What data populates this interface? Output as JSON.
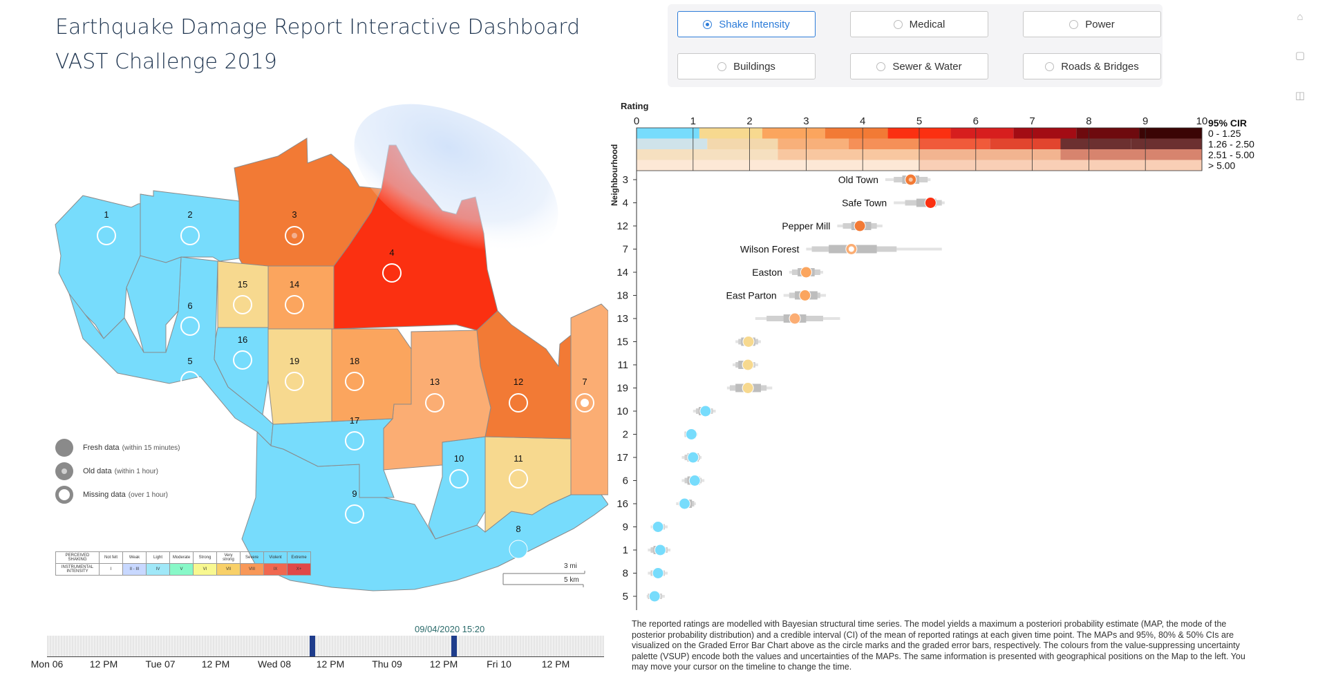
{
  "header": {
    "title_line1": "Earthquake Damage Report Interactive Dashboard",
    "title_line2": "VAST Challenge 2019"
  },
  "options": [
    {
      "label": "Shake Intensity",
      "selected": true
    },
    {
      "label": "Medical",
      "selected": false
    },
    {
      "label": "Power",
      "selected": false
    },
    {
      "label": "Buildings",
      "selected": false
    },
    {
      "label": "Sewer & Water",
      "selected": false
    },
    {
      "label": "Roads & Bridges",
      "selected": false
    }
  ],
  "sidebar_icons": [
    "home-icon",
    "chat-icon",
    "book-icon"
  ],
  "map": {
    "regions": [
      {
        "id": "1",
        "color": "#77dcfc",
        "marker": "missing"
      },
      {
        "id": "2",
        "color": "#77dcfc",
        "marker": "missing"
      },
      {
        "id": "3",
        "color": "#f27a35",
        "marker": "old"
      },
      {
        "id": "4",
        "color": "#fb3011",
        "marker": "missing"
      },
      {
        "id": "5",
        "color": "#77dcfc",
        "marker": "missing"
      },
      {
        "id": "6",
        "color": "#77dcfc",
        "marker": "missing"
      },
      {
        "id": "7",
        "color": "#fbad73",
        "marker": "old-white"
      },
      {
        "id": "8",
        "color": "#77dcfc",
        "marker": "fresh"
      },
      {
        "id": "9",
        "color": "#77dcfc",
        "marker": "missing"
      },
      {
        "id": "10",
        "color": "#77dcfc",
        "marker": "missing"
      },
      {
        "id": "11",
        "color": "#f7d98f",
        "marker": "missing"
      },
      {
        "id": "12",
        "color": "#f27a35",
        "marker": "missing"
      },
      {
        "id": "13",
        "color": "#fbad73",
        "marker": "missing"
      },
      {
        "id": "14",
        "color": "#fba55e",
        "marker": "missing"
      },
      {
        "id": "15",
        "color": "#f7d98f",
        "marker": "missing"
      },
      {
        "id": "16",
        "color": "#77dcfc",
        "marker": "missing"
      },
      {
        "id": "17",
        "color": "#77dcfc",
        "marker": "missing"
      },
      {
        "id": "18",
        "color": "#fba55e",
        "marker": "missing"
      },
      {
        "id": "19",
        "color": "#f7d98f",
        "marker": "missing"
      }
    ],
    "legend": [
      {
        "label": "Fresh data",
        "note": "(within 15 minutes)",
        "type": "fresh"
      },
      {
        "label": "Old data",
        "note": "(within 1 hour)",
        "type": "old"
      },
      {
        "label": "Missing data",
        "note": "(over 1 hour)",
        "type": "missing"
      }
    ],
    "mmi_table": {
      "row1_header": "PERCEIVED SHAKING",
      "row2_header": "INSTRUMENTAL INTENSITY",
      "shaking": [
        "Not felt",
        "Weak",
        "Light",
        "Moderate",
        "Strong",
        "Very strong",
        "Severe",
        "Violent",
        "Extreme"
      ],
      "intensity": [
        "I",
        "II - III",
        "IV",
        "V",
        "VI",
        "VII",
        "VIII",
        "IX",
        "X+"
      ],
      "colors": [
        "#ffffff",
        "#c8d8ff",
        "#a0e8f8",
        "#88f8c8",
        "#f8f890",
        "#f8d068",
        "#f89858",
        "#f06850",
        "#e04848"
      ]
    },
    "scale": {
      "mi": "3 mi",
      "km": "5 km"
    }
  },
  "timeline": {
    "current_time": "09/04/2020 15:20",
    "ticks": [
      "Mon 06",
      "12 PM",
      "Tue 07",
      "12 PM",
      "Wed 08",
      "12 PM",
      "Thu 09",
      "12 PM",
      "Fri 10",
      "12 PM"
    ]
  },
  "chart_data": {
    "type": "scatter",
    "xlabel": "Rating",
    "ylabel": "Neighbourhood",
    "xlim": [
      0,
      10
    ],
    "xticks": [
      0,
      1,
      2,
      3,
      4,
      5,
      6,
      7,
      8,
      9,
      10
    ],
    "legend_title": "95% CIR",
    "legend_entries": [
      "0 - 1.25",
      "1.26 - 2.50",
      "2.51 - 5.00",
      "> 5.00"
    ],
    "vsup_rows": [
      [
        "#77dcfc",
        "#f7d98f",
        "#fba55e",
        "#f27a35",
        "#fb3011",
        "#d71e1e",
        "#a30c14",
        "#6e0a0e",
        "#3b0505"
      ],
      [
        "#cfe3ea",
        "#f3d8ad",
        "#f8b07a",
        "#f59058",
        "#f05a3a",
        "#e2452e",
        "#6c3030",
        "#6c3030"
      ],
      [
        "#f6e0c0",
        "#f8c7a0",
        "#f2b490",
        "#d7846e"
      ],
      [
        "#fde8d6",
        "#f9cfb6"
      ]
    ],
    "points": [
      {
        "neighbourhood": "3",
        "name": "Old Town",
        "map": 4.85,
        "ci50": [
          4.7,
          5.0
        ],
        "ci80": [
          4.55,
          5.15
        ],
        "ci95": [
          4.4,
          5.2
        ],
        "color": "#f27a35",
        "marker": "old"
      },
      {
        "neighbourhood": "4",
        "name": "Safe Town",
        "map": 5.2,
        "ci50": [
          4.95,
          5.3
        ],
        "ci80": [
          4.75,
          5.4
        ],
        "ci95": [
          4.55,
          5.45
        ],
        "color": "#fb3011",
        "marker": "fresh"
      },
      {
        "neighbourhood": "12",
        "name": "Pepper Mill",
        "map": 3.95,
        "ci50": [
          3.8,
          4.15
        ],
        "ci80": [
          3.65,
          4.25
        ],
        "ci95": [
          3.55,
          4.35
        ],
        "color": "#f27a35",
        "marker": "fresh"
      },
      {
        "neighbourhood": "7",
        "name": "Wilson Forest",
        "map": 3.8,
        "ci50": [
          3.4,
          4.25
        ],
        "ci80": [
          3.1,
          4.6
        ],
        "ci95": [
          3.0,
          5.4
        ],
        "color": "#fbad73",
        "marker": "old-white"
      },
      {
        "neighbourhood": "14",
        "name": "Easton",
        "map": 3.0,
        "ci50": [
          2.85,
          3.15
        ],
        "ci80": [
          2.75,
          3.25
        ],
        "ci95": [
          2.7,
          3.3
        ],
        "color": "#fba55e",
        "marker": "fresh"
      },
      {
        "neighbourhood": "18",
        "name": "East Parton",
        "map": 2.98,
        "ci50": [
          2.8,
          3.2
        ],
        "ci80": [
          2.7,
          3.25
        ],
        "ci95": [
          2.6,
          3.35
        ],
        "color": "#fba55e",
        "marker": "fresh"
      },
      {
        "neighbourhood": "13",
        "map": 2.8,
        "ci50": [
          2.6,
          3.0
        ],
        "ci80": [
          2.3,
          3.3
        ],
        "ci95": [
          2.1,
          3.6
        ],
        "color": "#fbad73",
        "marker": "fresh"
      },
      {
        "neighbourhood": "15",
        "map": 1.98,
        "ci50": [
          1.85,
          2.1
        ],
        "ci80": [
          1.8,
          2.15
        ],
        "ci95": [
          1.75,
          2.2
        ],
        "color": "#f7d98f",
        "marker": "fresh"
      },
      {
        "neighbourhood": "11",
        "map": 1.97,
        "ci50": [
          1.8,
          2.05
        ],
        "ci80": [
          1.75,
          2.1
        ],
        "ci95": [
          1.7,
          2.15
        ],
        "color": "#f7d98f",
        "marker": "fresh"
      },
      {
        "neighbourhood": "19",
        "map": 1.97,
        "ci50": [
          1.75,
          2.2
        ],
        "ci80": [
          1.65,
          2.3
        ],
        "ci95": [
          1.6,
          2.4
        ],
        "color": "#f7d98f",
        "marker": "fresh"
      },
      {
        "neighbourhood": "10",
        "map": 1.22,
        "ci50": [
          1.1,
          1.3
        ],
        "ci80": [
          1.05,
          1.35
        ],
        "ci95": [
          1.0,
          1.4
        ],
        "color": "#77dcfc",
        "marker": "fresh"
      },
      {
        "neighbourhood": "2",
        "map": 0.97,
        "ci50": [
          0.9,
          1.05
        ],
        "ci80": [
          0.85,
          1.05
        ],
        "ci95": [
          0.85,
          1.08
        ],
        "color": "#77dcfc",
        "marker": "fresh"
      },
      {
        "neighbourhood": "17",
        "map": 1.0,
        "ci50": [
          0.9,
          1.1
        ],
        "ci80": [
          0.85,
          1.12
        ],
        "ci95": [
          0.8,
          1.15
        ],
        "color": "#77dcfc",
        "marker": "fresh"
      },
      {
        "neighbourhood": "6",
        "map": 1.03,
        "ci50": [
          0.9,
          1.12
        ],
        "ci80": [
          0.85,
          1.15
        ],
        "ci95": [
          0.8,
          1.2
        ],
        "color": "#77dcfc",
        "marker": "fresh"
      },
      {
        "neighbourhood": "16",
        "map": 0.85,
        "ci50": [
          0.8,
          0.98
        ],
        "ci80": [
          0.75,
          1.02
        ],
        "ci95": [
          0.7,
          1.05
        ],
        "color": "#77dcfc",
        "marker": "fresh"
      },
      {
        "neighbourhood": "9",
        "map": 0.38,
        "ci50": [
          0.3,
          0.45
        ],
        "ci80": [
          0.28,
          0.5
        ],
        "ci95": [
          0.25,
          0.55
        ],
        "color": "#77dcfc",
        "marker": "fresh"
      },
      {
        "neighbourhood": "1",
        "map": 0.42,
        "ci50": [
          0.3,
          0.5
        ],
        "ci80": [
          0.25,
          0.55
        ],
        "ci95": [
          0.2,
          0.6
        ],
        "color": "#77dcfc",
        "marker": "fresh"
      },
      {
        "neighbourhood": "8",
        "map": 0.38,
        "ci50": [
          0.3,
          0.45
        ],
        "ci80": [
          0.25,
          0.5
        ],
        "ci95": [
          0.2,
          0.55
        ],
        "color": "#77dcfc",
        "marker": "fresh"
      },
      {
        "neighbourhood": "5",
        "map": 0.32,
        "ci50": [
          0.25,
          0.4
        ],
        "ci80": [
          0.2,
          0.45
        ],
        "ci95": [
          0.18,
          0.5
        ],
        "color": "#77dcfc",
        "marker": "fresh"
      }
    ]
  },
  "description": "The reported ratings are modelled with Bayesian structural time series. The model yields a maximum a posteriori probability estimate (MAP, the mode of the posterior probability distribution) and a credible interval (CI) of the mean of reported ratings at each given time point. The MAPs and 95%, 80% & 50% CIs are visualized on the Graded Error Bar Chart above as the circle marks and the graded error bars, respectively. The colours from the value-suppressing uncertainty palette (VSUP) encode both the values and uncertainties of the MAPs. The same information is presented with geographical positions on the Map to the left. You may move your cursor on the timeline to change the time."
}
